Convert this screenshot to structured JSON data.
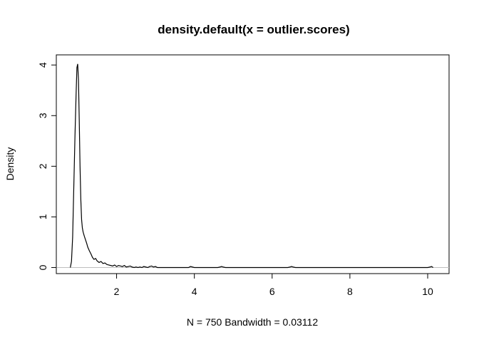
{
  "chart_data": {
    "type": "line",
    "title": "density.default(x = outlier.scores)",
    "xlabel": "N = 750   Bandwidth = 0.03112",
    "ylabel": "Density",
    "xlim": [
      0.45,
      10.55
    ],
    "ylim": [
      -0.12,
      4.2
    ],
    "xticks": [
      2,
      4,
      6,
      8,
      10
    ],
    "xtick_labels": [
      "2",
      "4",
      "6",
      "8",
      "10"
    ],
    "yticks": [
      0,
      1,
      2,
      3,
      4
    ],
    "ytick_labels": [
      "0",
      "1",
      "2",
      "3",
      "4"
    ],
    "baseline": 0,
    "baseline_color": "#bebebe",
    "line_color": "#000000",
    "series": [
      {
        "name": "density",
        "x": [
          0.81,
          0.84,
          0.87,
          0.9,
          0.93,
          0.96,
          0.98,
          1.0,
          1.02,
          1.04,
          1.06,
          1.08,
          1.1,
          1.12,
          1.14,
          1.17,
          1.2,
          1.23,
          1.26,
          1.3,
          1.34,
          1.38,
          1.42,
          1.46,
          1.5,
          1.55,
          1.6,
          1.65,
          1.7,
          1.75,
          1.8,
          1.85,
          1.9,
          1.95,
          2.0,
          2.05,
          2.1,
          2.15,
          2.2,
          2.25,
          2.3,
          2.35,
          2.4,
          2.45,
          2.5,
          2.55,
          2.6,
          2.65,
          2.7,
          2.75,
          2.8,
          2.85,
          2.9,
          2.95,
          3.0,
          3.05,
          3.1,
          3.5,
          3.85,
          3.9,
          3.95,
          4.0,
          4.6,
          4.66,
          4.7,
          4.74,
          4.8,
          6.4,
          6.46,
          6.5,
          6.54,
          6.6,
          10.0,
          10.06,
          10.1,
          10.14
        ],
        "y": [
          0.0,
          0.12,
          0.6,
          1.6,
          2.6,
          3.45,
          3.95,
          4.02,
          3.7,
          2.9,
          2.0,
          1.35,
          0.95,
          0.78,
          0.7,
          0.62,
          0.55,
          0.48,
          0.4,
          0.33,
          0.27,
          0.2,
          0.16,
          0.18,
          0.13,
          0.1,
          0.12,
          0.08,
          0.09,
          0.06,
          0.05,
          0.04,
          0.03,
          0.05,
          0.02,
          0.04,
          0.03,
          0.02,
          0.04,
          0.01,
          0.02,
          0.03,
          0.01,
          0.0,
          0.01,
          0.0,
          0.01,
          0.0,
          0.02,
          0.01,
          0.0,
          0.02,
          0.03,
          0.01,
          0.02,
          0.0,
          0.0,
          0.0,
          0.0,
          0.02,
          0.01,
          0.0,
          0.0,
          0.01,
          0.02,
          0.01,
          0.0,
          0.0,
          0.01,
          0.02,
          0.01,
          0.0,
          0.0,
          0.01,
          0.02,
          0.0
        ]
      }
    ]
  }
}
